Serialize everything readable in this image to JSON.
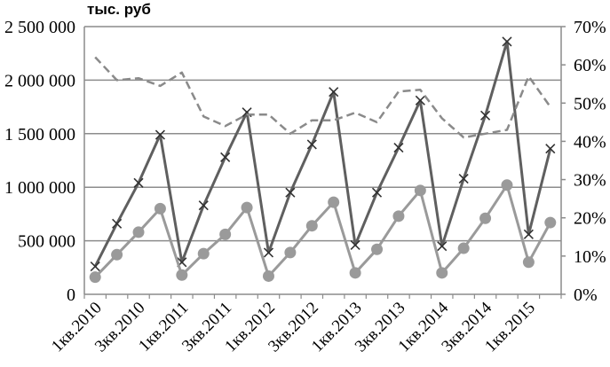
{
  "chart_data": {
    "type": "line",
    "unit_label": "тыс. руб",
    "left_axis": {
      "ylim": [
        0,
        2500000
      ],
      "tick_values": [
        0,
        500000,
        1000000,
        1500000,
        2000000,
        2500000
      ],
      "tick_labels": [
        "0",
        "500 000",
        "1 000 000",
        "1 500 000",
        "2 000 000",
        "2 500 000"
      ]
    },
    "right_axis": {
      "ylim": [
        0,
        70
      ],
      "tick_values": [
        0,
        10,
        20,
        30,
        40,
        50,
        60,
        70
      ],
      "tick_labels": [
        "0%",
        "10%",
        "20%",
        "30%",
        "40%",
        "50%",
        "60%",
        "70%"
      ]
    },
    "x_tick_labels": [
      "1кв.2010",
      "3кв.2010",
      "1кв.2011",
      "3кв.2011",
      "1кв.2012",
      "3кв.2012",
      "1кв.2013",
      "3кв.2013",
      "1кв.2014",
      "3кв.2014",
      "1кв.2015"
    ],
    "series": [
      {
        "name": "series-x-markers",
        "axis": "left",
        "marker": "x",
        "color": "#5f5f5f",
        "values": [
          260000,
          660000,
          1040000,
          1490000,
          300000,
          830000,
          1280000,
          1700000,
          390000,
          950000,
          1400000,
          1890000,
          460000,
          950000,
          1370000,
          1810000,
          450000,
          1080000,
          1670000,
          2360000,
          560000,
          1360000
        ]
      },
      {
        "name": "series-circle-markers",
        "axis": "left",
        "marker": "circle",
        "color": "#9a9a9a",
        "values": [
          160000,
          370000,
          580000,
          800000,
          180000,
          380000,
          560000,
          810000,
          170000,
          390000,
          640000,
          860000,
          200000,
          420000,
          730000,
          970000,
          200000,
          430000,
          710000,
          1020000,
          300000,
          670000
        ]
      },
      {
        "name": "series-dashed-percent",
        "axis": "right",
        "marker": "none",
        "style": "dashed",
        "color": "#8a8a8a",
        "values": [
          62,
          56,
          56.5,
          54.5,
          58,
          46.5,
          44,
          47,
          47,
          42,
          45.5,
          45.5,
          47.5,
          45,
          53,
          53.5,
          46,
          41,
          42,
          43,
          57,
          49
        ]
      }
    ]
  }
}
